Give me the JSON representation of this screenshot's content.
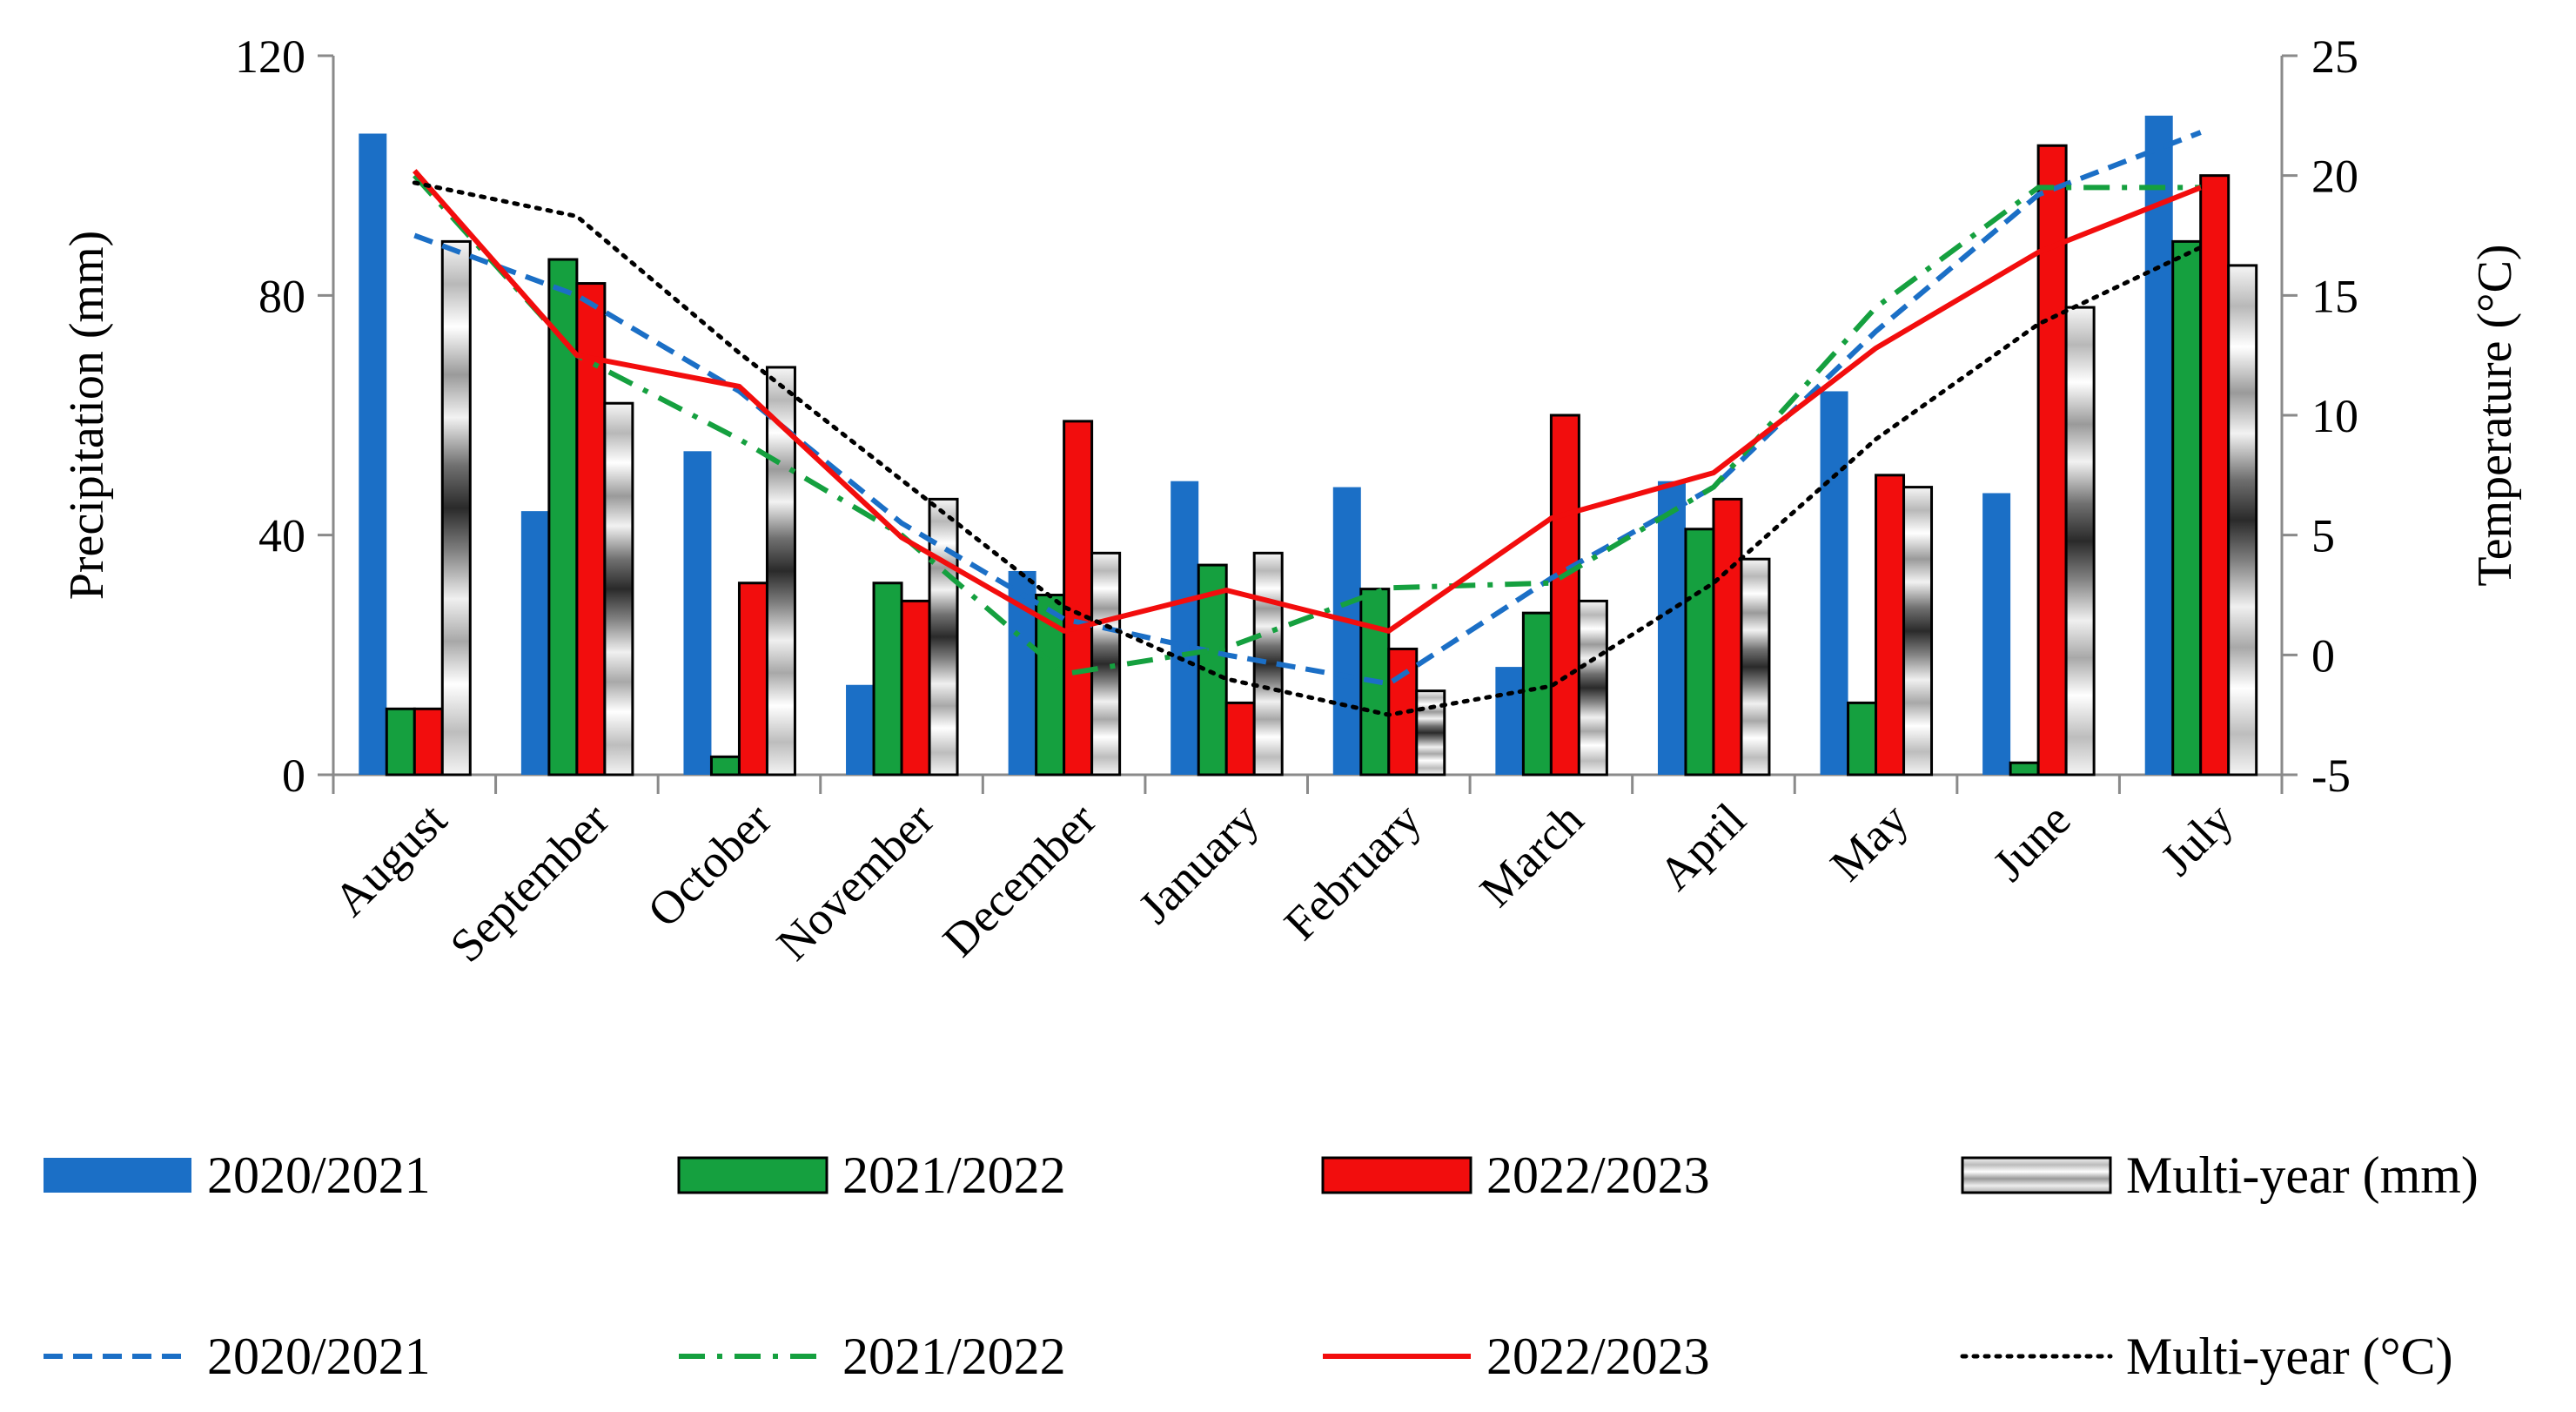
{
  "chart_data": {
    "type": "bar+line",
    "categories": [
      "August",
      "September",
      "October",
      "November",
      "December",
      "January",
      "February",
      "March",
      "April",
      "May",
      "June",
      "July"
    ],
    "ylabel": "Precipitation (mm)",
    "ylabel_right": "Temperature (°C)",
    "ylim": [
      0,
      120
    ],
    "ylim_right": [
      -5,
      25
    ],
    "yticks": [
      0,
      40,
      80,
      120
    ],
    "yticks_right": [
      -5,
      0,
      5,
      10,
      15,
      20,
      25
    ],
    "bar_series": [
      {
        "name": "2020/2021",
        "legend": "2020/2021",
        "color": "#1B6FC6",
        "pattern": "solid",
        "values": [
          107,
          44,
          54,
          15,
          34,
          49,
          48,
          18,
          49,
          64,
          47,
          110
        ]
      },
      {
        "name": "2021/2022",
        "legend": "2021/2022",
        "color": "#15A03F",
        "pattern": "solid",
        "values": [
          11,
          86,
          3,
          32,
          30,
          35,
          31,
          27,
          41,
          12,
          2,
          89
        ]
      },
      {
        "name": "2022/2023",
        "legend": "2022/2023",
        "color": "#F20D0D",
        "pattern": "solid",
        "values": [
          11,
          82,
          32,
          29,
          59,
          12,
          21,
          60,
          46,
          50,
          105,
          100
        ]
      },
      {
        "name": "Multi-year (mm)",
        "legend": "Multi-year (mm)",
        "color": "#808080",
        "pattern": "gray-gradient",
        "values": [
          89,
          62,
          68,
          46,
          37,
          37,
          14,
          29,
          36,
          48,
          78,
          85
        ]
      }
    ],
    "line_series": [
      {
        "name": "2020/2021",
        "legend": "2020/2021",
        "color": "#1B6FC6",
        "dash": "dashed",
        "values": [
          17.5,
          15.0,
          11.0,
          5.5,
          1.5,
          0.0,
          -1.2,
          3.2,
          7.0,
          13.5,
          19.2,
          21.8
        ]
      },
      {
        "name": "2021/2022",
        "legend": "2021/2022",
        "color": "#15A03F",
        "dash": "dashdot",
        "values": [
          20.0,
          12.5,
          9.0,
          5.0,
          -0.8,
          0.3,
          2.8,
          3.0,
          7.0,
          14.5,
          19.5,
          19.5
        ]
      },
      {
        "name": "2022/2023",
        "legend": "2022/2023",
        "color": "#F20D0D",
        "dash": "solid",
        "values": [
          20.2,
          12.5,
          11.2,
          4.9,
          1.0,
          2.7,
          1.0,
          5.7,
          7.6,
          12.8,
          16.8,
          19.5
        ]
      },
      {
        "name": "Multi-year (°C)",
        "legend": "Multi-year (°C)",
        "color": "#000000",
        "dash": "dotted",
        "values": [
          19.7,
          18.3,
          12.6,
          7.3,
          2.0,
          -1.0,
          -2.5,
          -1.3,
          3.0,
          9.0,
          13.8,
          17.0
        ]
      }
    ]
  }
}
